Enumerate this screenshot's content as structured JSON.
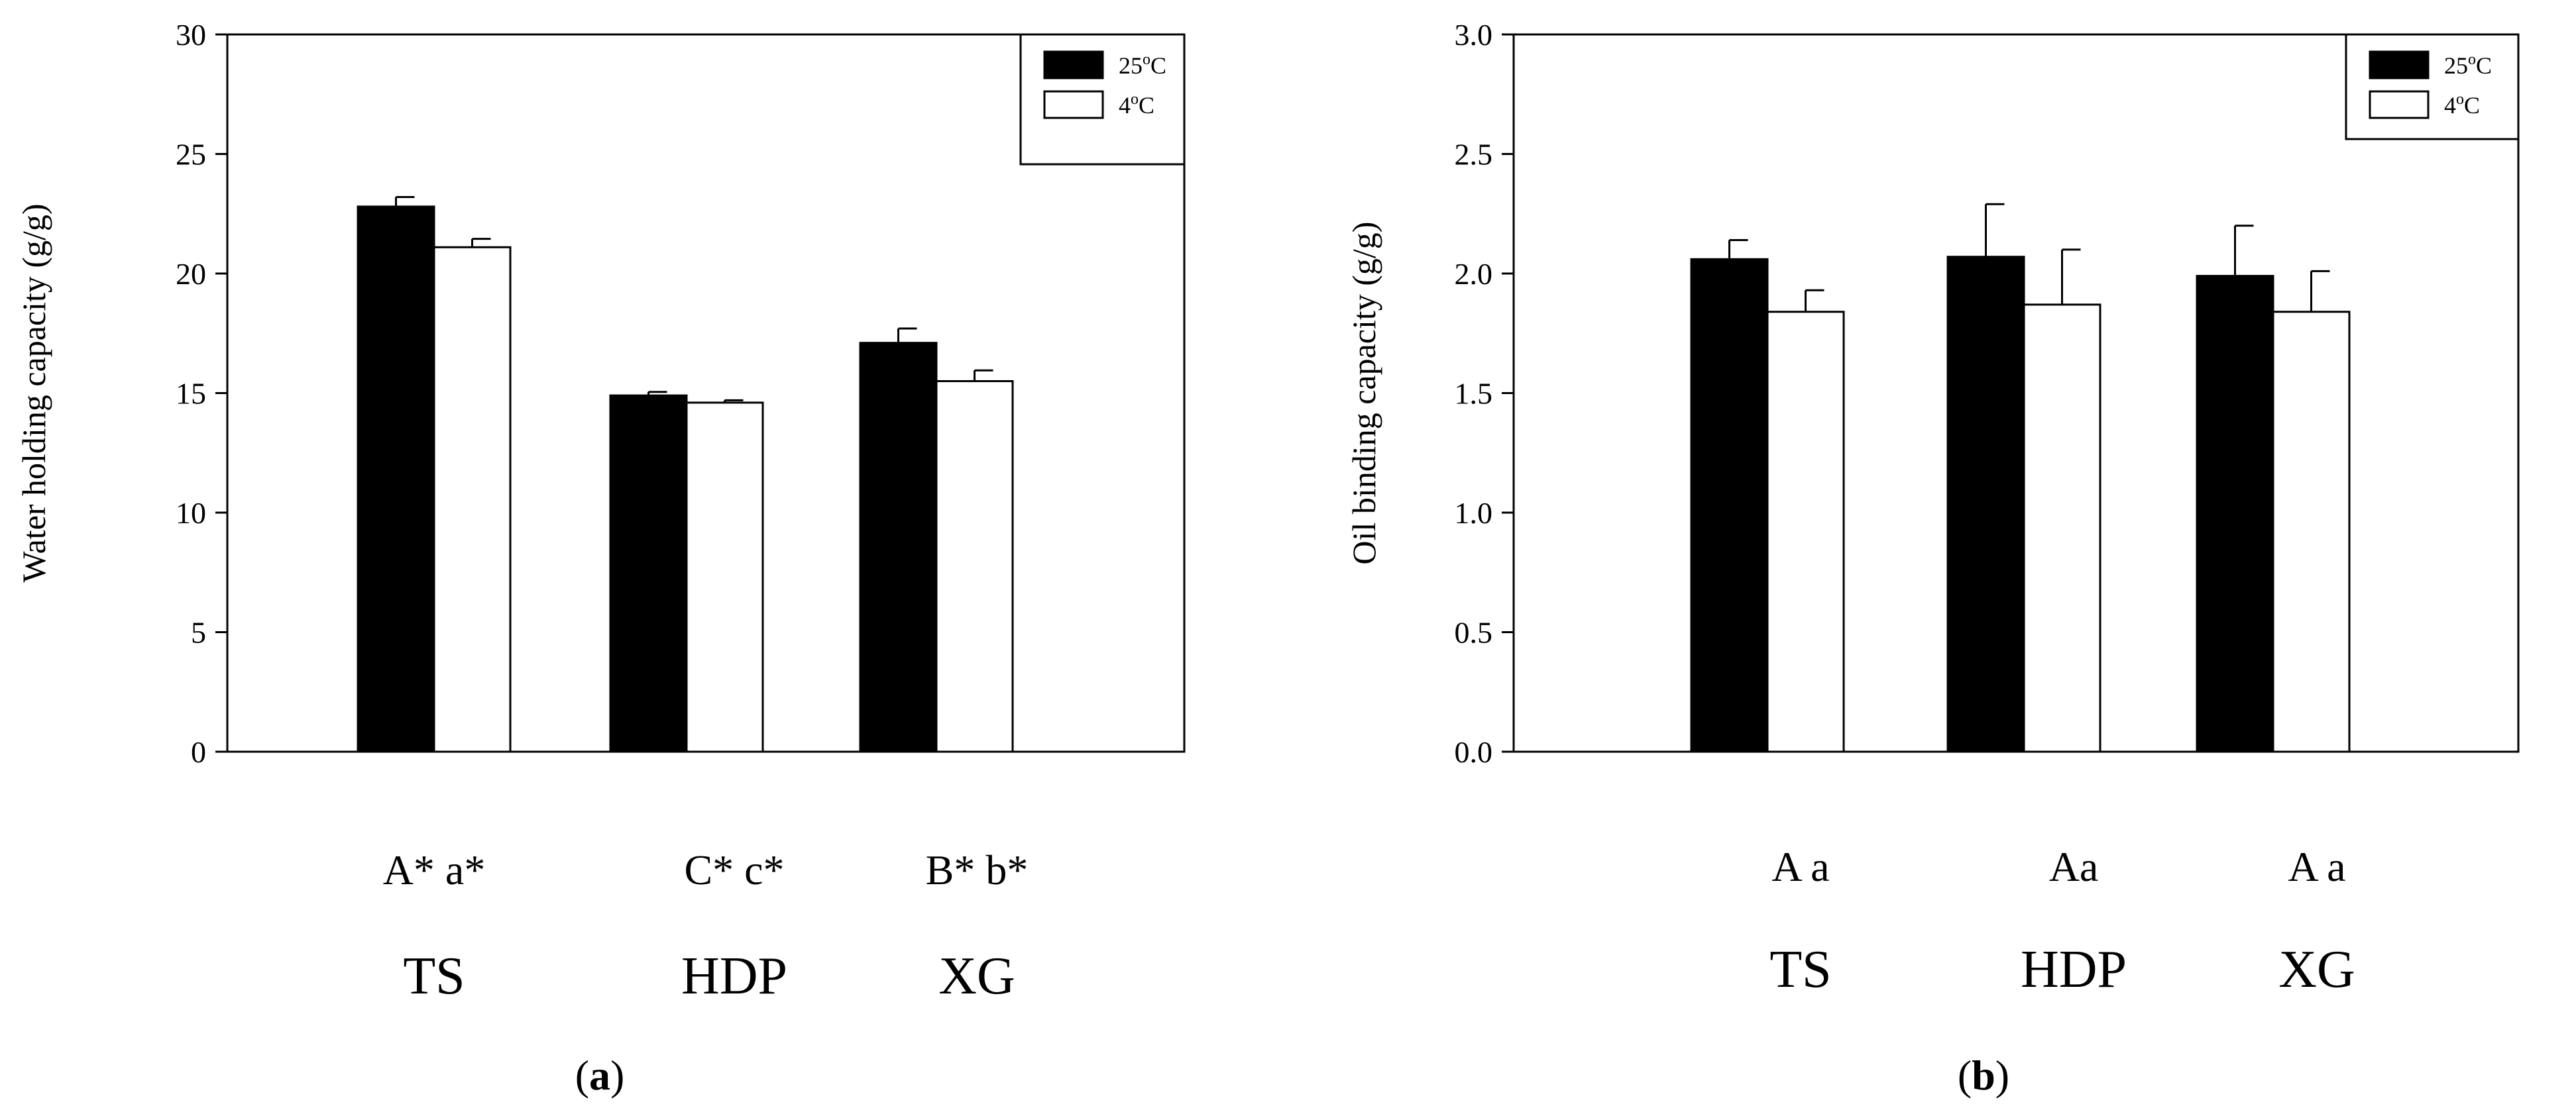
{
  "chart_data": [
    {
      "type": "bar",
      "panel_label_letter": "a",
      "ylabel": "Water holding capacity (g/g)",
      "xlabel": "",
      "ylim": [
        0,
        30
      ],
      "yticks": [
        0,
        5,
        10,
        15,
        20,
        25,
        30
      ],
      "ytick_labels": [
        "0",
        "5",
        "10",
        "15",
        "20",
        "25",
        "30"
      ],
      "categories": [
        "TS",
        "HDP",
        "XG"
      ],
      "significance_labels": [
        "A* a*",
        "C* c*",
        "B* b*"
      ],
      "series": [
        {
          "name": "25°C",
          "values": [
            22.8,
            14.9,
            17.1
          ],
          "errors": [
            0.4,
            0.15,
            0.6
          ],
          "color": "#000000"
        },
        {
          "name": "4°C",
          "values": [
            21.1,
            14.6,
            15.5
          ],
          "errors": [
            0.35,
            0.1,
            0.45
          ],
          "color": "#ffffff"
        }
      ],
      "legend_items": [
        {
          "base": "25",
          "deg": "o",
          "unit": "C"
        },
        {
          "base": "4",
          "deg": "o",
          "unit": "C"
        }
      ],
      "legend_position": "top-right",
      "grid": false
    },
    {
      "type": "bar",
      "panel_label_letter": "b",
      "ylabel": "Oil binding capacity (g/g)",
      "xlabel": "",
      "ylim": [
        0,
        3
      ],
      "yticks": [
        0,
        0.5,
        1,
        1.5,
        2,
        2.5,
        3
      ],
      "ytick_labels": [
        "0.0",
        "0.5",
        "1.0",
        "1.5",
        "2.0",
        "2.5",
        "3.0"
      ],
      "categories": [
        "TS",
        "HDP",
        "XG"
      ],
      "significance_labels": [
        "A a",
        "Aa",
        "A a"
      ],
      "series": [
        {
          "name": "25°C",
          "values": [
            2.06,
            2.07,
            1.99
          ],
          "errors": [
            0.08,
            0.22,
            0.21
          ],
          "color": "#000000"
        },
        {
          "name": "4°C",
          "values": [
            1.84,
            1.87,
            1.84
          ],
          "errors": [
            0.09,
            0.23,
            0.17
          ],
          "color": "#ffffff"
        }
      ],
      "legend_items": [
        {
          "base": "25",
          "deg": "o",
          "unit": "C"
        },
        {
          "base": "4",
          "deg": "o",
          "unit": "C"
        }
      ],
      "legend_position": "top-right",
      "grid": false
    }
  ]
}
